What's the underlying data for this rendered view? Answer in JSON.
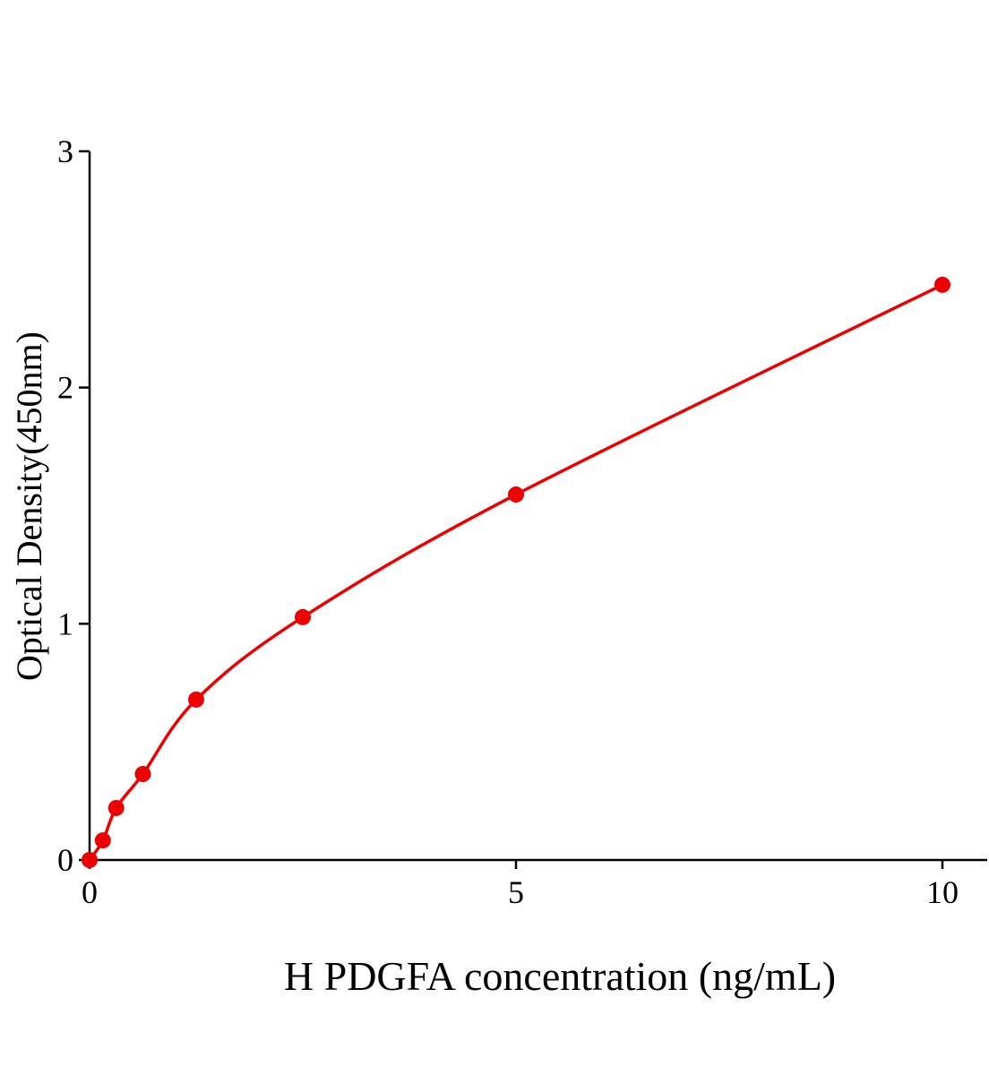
{
  "chart_data": {
    "type": "scatter",
    "title": "",
    "xlabel": "H PDGFA concentration (ng/mL)",
    "ylabel": "Optical Density(450nm)",
    "xlim": [
      0,
      10.5
    ],
    "ylim": [
      0,
      3
    ],
    "xticks": [
      0,
      5,
      10
    ],
    "yticks": [
      0,
      1,
      2,
      3
    ],
    "grid": false,
    "legend": "none",
    "series": [
      {
        "x": [
          0,
          0.156,
          0.312,
          0.625,
          1.25,
          2.5,
          5,
          10
        ],
        "y": [
          0.0,
          0.083,
          0.22,
          0.364,
          0.679,
          1.028,
          1.547,
          2.435
        ],
        "color": "#ee0000",
        "fit_line": true
      }
    ]
  }
}
